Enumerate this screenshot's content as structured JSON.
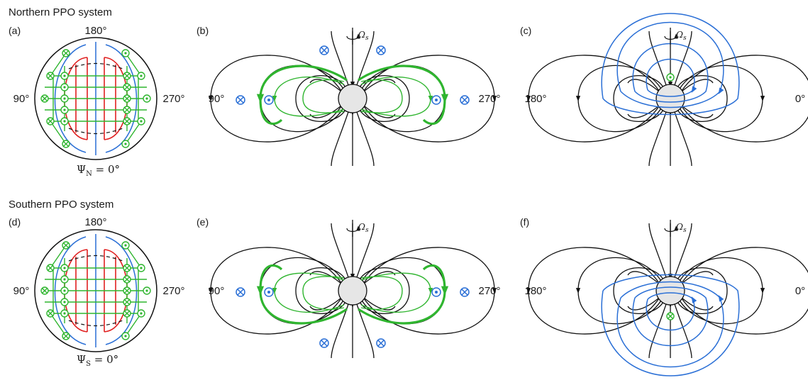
{
  "figure": {
    "northern_title": "Northern PPO system",
    "southern_title": "Southern PPO system",
    "panels": {
      "a": "(a)",
      "b": "(b)",
      "c": "(c)",
      "d": "(d)",
      "e": "(e)",
      "f": "(f)"
    },
    "disk_top_label": "180°",
    "disk_left_label": "90°",
    "disk_right_label": "270°",
    "psi_north": "Ψ",
    "psi_north_sub": "N",
    "psi_north_eq": " = 0°",
    "psi_south": "Ψ",
    "psi_south_sub": "S",
    "psi_south_eq": " = 0°",
    "meridian_left_b": "90°",
    "meridian_right_b": "270°",
    "meridian_left_c": "180°",
    "meridian_right_c": "0°",
    "omega": "Ω",
    "omega_sub": "s",
    "colors": {
      "field_lines": "#111111",
      "currents": "#2fb52f",
      "ppo_field": "#2a6fd6",
      "disk_current": "#e02020",
      "planet": "#e6e6e6"
    },
    "icons": [
      "current-into-page-icon",
      "current-out-of-page-icon",
      "rotation-arrow-icon"
    ]
  }
}
